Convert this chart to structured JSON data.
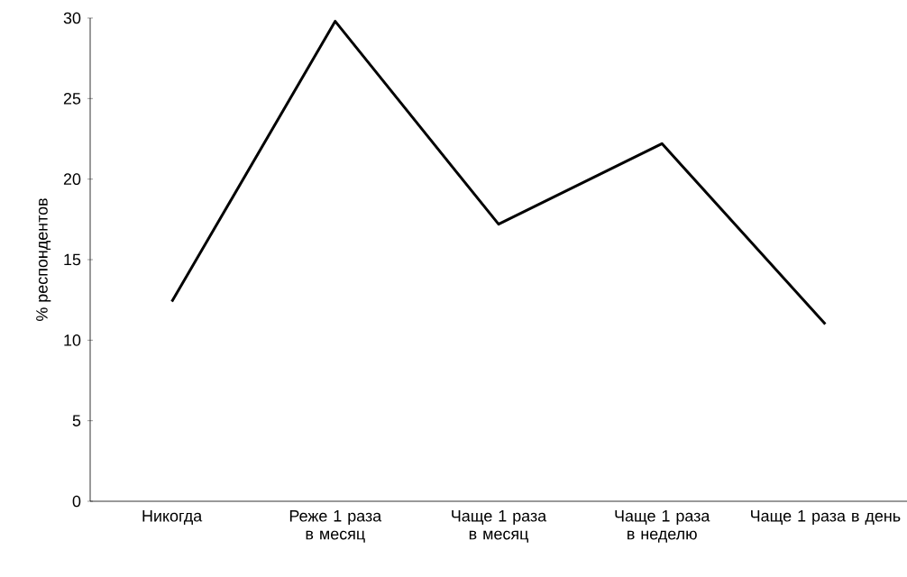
{
  "chart_data": {
    "type": "line",
    "ylabel": "% респондентов",
    "categories": [
      "Никогда",
      "Реже 1 раза в месяц",
      "Чаще 1 раза в месяц",
      "Чаще 1 раза в неделю",
      "Чаще 1 раза в день"
    ],
    "values": [
      12.4,
      29.8,
      17.2,
      22.2,
      11.0
    ],
    "color": "#000000",
    "ylim": [
      0,
      30
    ],
    "yticks": [
      0,
      5,
      10,
      15,
      20,
      25,
      30
    ],
    "grid": false,
    "marker": "none",
    "line_style": "solid"
  }
}
